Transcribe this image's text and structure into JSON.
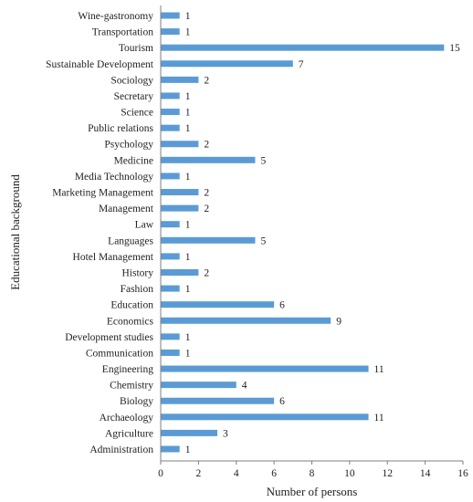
{
  "chart_data": {
    "type": "bar",
    "orientation": "horizontal",
    "categories": [
      "Wine-gastronomy",
      "Transportation",
      "Tourism",
      "Sustainable Development",
      "Sociology",
      "Secretary",
      "Science",
      "Public relations",
      "Psychology",
      "Medicine",
      "Media Technology",
      "Marketing Management",
      "Management",
      "Law",
      "Languages",
      "Hotel Management",
      "History",
      "Fashion",
      "Education",
      "Economics",
      "Development studies",
      "Communication",
      "Engineering",
      "Chemistry",
      "Biology",
      "Archaeology",
      "Agriculture",
      "Administration"
    ],
    "values": [
      1,
      1,
      15,
      7,
      2,
      1,
      1,
      1,
      2,
      5,
      1,
      2,
      2,
      1,
      5,
      1,
      2,
      1,
      6,
      9,
      1,
      1,
      11,
      4,
      6,
      11,
      3,
      1
    ],
    "title": "",
    "xlabel": "Number of persons",
    "ylabel": "Educational background",
    "xlim": [
      0,
      16
    ],
    "xticks": [
      0,
      2,
      4,
      6,
      8,
      10,
      12,
      14,
      16
    ],
    "data_labels": true,
    "grid": false,
    "legend": false,
    "bar_color": "#5B9BD5"
  }
}
